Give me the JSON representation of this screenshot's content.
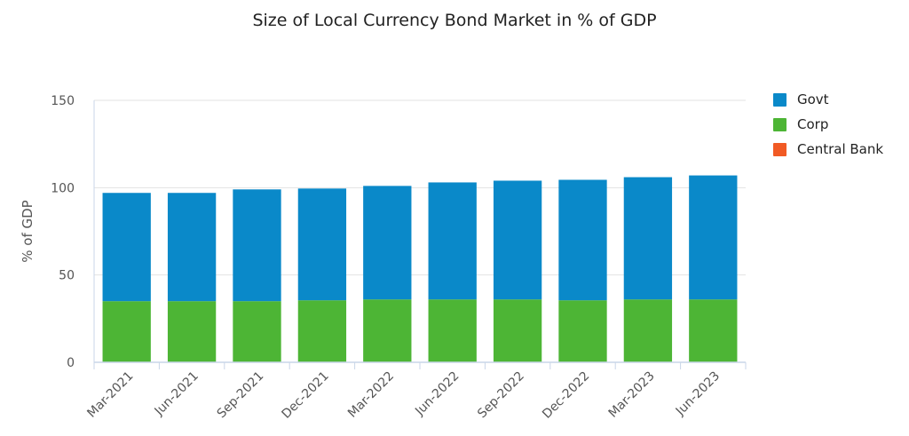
{
  "chart_data": {
    "type": "bar",
    "stacked": true,
    "title": "Size of Local Currency Bond Market in % of GDP",
    "xlabel": "",
    "ylabel": "% of GDP",
    "ylim": [
      0,
      150
    ],
    "yticks": [
      "0",
      "50",
      "100",
      "150"
    ],
    "grid": true,
    "legend_position": "right",
    "categories": [
      "Mar-2021",
      "Jun-2021",
      "Sep-2021",
      "Dec-2021",
      "Mar-2022",
      "Jun-2022",
      "Sep-2022",
      "Dec-2022",
      "Mar-2023",
      "Jun-2023"
    ],
    "series": [
      {
        "name": "Corp",
        "color": "#4db535",
        "values": [
          35,
          35,
          35,
          35.5,
          36,
          36,
          36,
          35.5,
          36,
          36
        ]
      },
      {
        "name": "Govt",
        "color": "#0a89c9",
        "values": [
          62,
          62,
          64,
          64,
          65,
          67,
          68,
          69,
          70,
          71
        ]
      },
      {
        "name": "Central Bank",
        "color": "#f15a24",
        "values": [
          0,
          0,
          0,
          0,
          0,
          0,
          0,
          0,
          0,
          0
        ]
      }
    ],
    "legend": [
      {
        "name": "Govt",
        "color": "#0a89c9"
      },
      {
        "name": "Corp",
        "color": "#4db535"
      },
      {
        "name": "Central Bank",
        "color": "#f15a24"
      }
    ]
  }
}
